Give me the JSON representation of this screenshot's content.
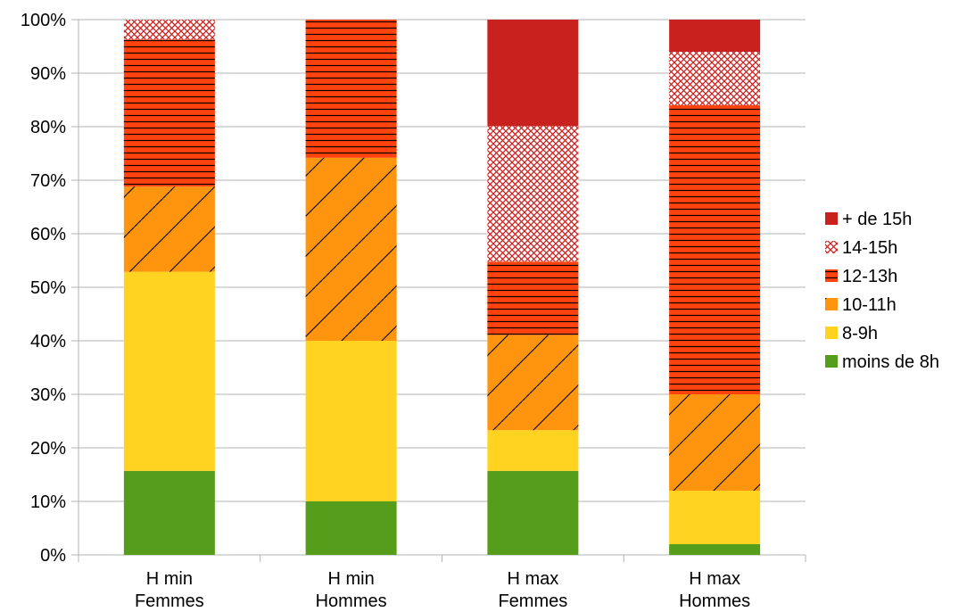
{
  "chart_data": {
    "type": "bar",
    "stacked": true,
    "percent": true,
    "categories": [
      [
        "H min",
        "Femmes"
      ],
      [
        "H min",
        "Hommes"
      ],
      [
        "H max",
        "Femmes"
      ],
      [
        "H max",
        "Hommes"
      ]
    ],
    "series": [
      {
        "name": "moins de 8h",
        "color": "#579d1c",
        "pattern": "solid",
        "values": [
          15.7,
          10.0,
          15.7,
          2.0
        ]
      },
      {
        "name": "8-9h",
        "color": "#ffd320",
        "pattern": "solid",
        "values": [
          37.2,
          30.0,
          7.6,
          10.0
        ]
      },
      {
        "name": "10-11h",
        "color": "#ff950e",
        "pattern": "diagonal",
        "values": [
          15.9,
          34.2,
          17.8,
          18.0
        ]
      },
      {
        "name": "12-13h",
        "color": "#ff420e",
        "pattern": "horizontal",
        "values": [
          27.5,
          25.8,
          13.7,
          54.0
        ]
      },
      {
        "name": "14-15h",
        "color": "#c9211e",
        "pattern": "crosshatch",
        "values": [
          3.7,
          0.0,
          25.3,
          10.0
        ]
      },
      {
        "name": "+ de 15h",
        "color": "#c9211e",
        "pattern": "solid",
        "values": [
          0.0,
          0.0,
          19.9,
          6.0
        ]
      }
    ],
    "y_ticks": [
      "0%",
      "10%",
      "20%",
      "30%",
      "40%",
      "50%",
      "60%",
      "70%",
      "80%",
      "90%",
      "100%"
    ],
    "ylim": [
      0,
      100
    ],
    "grid": true,
    "legend_position": "right",
    "title": "",
    "xlabel": "",
    "ylabel": ""
  }
}
